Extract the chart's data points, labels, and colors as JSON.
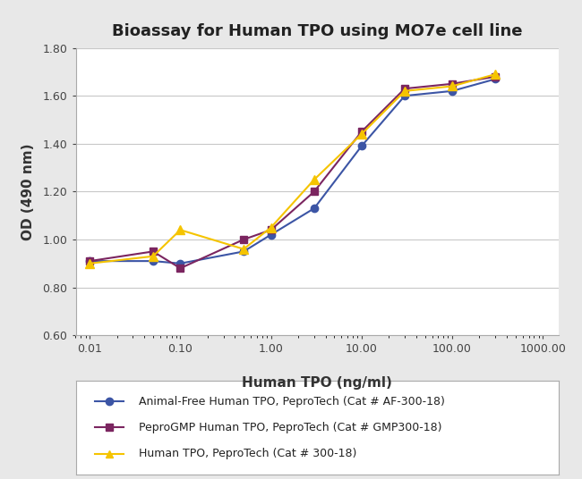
{
  "title": "Bioassay for Human TPO using MO7e cell line",
  "xlabel": "Human TPO (ng/ml)",
  "ylabel": "OD (490 nm)",
  "ylim": [
    0.6,
    1.8
  ],
  "yticks": [
    0.6,
    0.8,
    1.0,
    1.2,
    1.4,
    1.6,
    1.8
  ],
  "xticks": [
    0.01,
    0.1,
    1.0,
    10.0,
    100.0,
    1000.0
  ],
  "xtick_labels": [
    "0.01",
    "0.10",
    "1.00",
    "10.00",
    "100.00",
    "1000.00"
  ],
  "series": [
    {
      "label": "Animal-Free Human TPO, PeproTech (Cat # AF-300-18)",
      "color": "#3C55A5",
      "marker": "o",
      "markersize": 6,
      "x": [
        0.01,
        0.05,
        0.1,
        0.5,
        1.0,
        3.0,
        10.0,
        30.0,
        100.0,
        300.0
      ],
      "y": [
        0.91,
        0.91,
        0.9,
        0.95,
        1.02,
        1.13,
        1.39,
        1.6,
        1.62,
        1.67
      ]
    },
    {
      "label": "PeproGMP Human TPO, PeproTech (Cat # GMP300-18)",
      "color": "#7B2560",
      "marker": "s",
      "markersize": 6,
      "x": [
        0.01,
        0.05,
        0.1,
        0.5,
        1.0,
        3.0,
        10.0,
        30.0,
        100.0,
        300.0
      ],
      "y": [
        0.91,
        0.95,
        0.88,
        1.0,
        1.04,
        1.2,
        1.45,
        1.63,
        1.65,
        1.68
      ]
    },
    {
      "label": "Human TPO, PeproTech (Cat # 300-18)",
      "color": "#F5C400",
      "marker": "^",
      "markersize": 7,
      "x": [
        0.01,
        0.05,
        0.1,
        0.5,
        1.0,
        3.0,
        10.0,
        30.0,
        100.0,
        300.0
      ],
      "y": [
        0.9,
        0.93,
        1.04,
        0.96,
        1.05,
        1.25,
        1.44,
        1.62,
        1.64,
        1.69
      ]
    }
  ],
  "background_color": "#e8e8e8",
  "plot_bg_color": "#ffffff",
  "grid_color": "#c8c8c8",
  "title_fontsize": 13,
  "label_fontsize": 11,
  "tick_fontsize": 9,
  "legend_fontsize": 9
}
